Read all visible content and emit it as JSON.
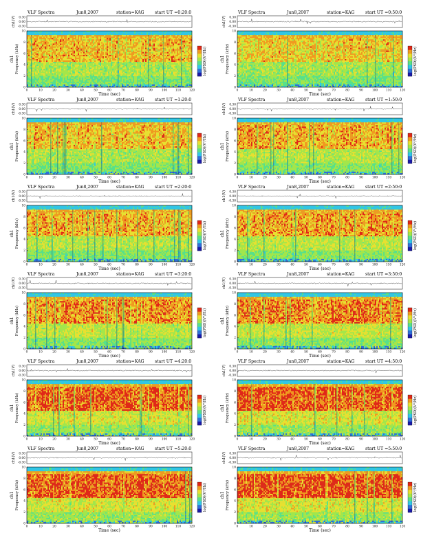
{
  "page": {
    "strip_label": "ch1(V)",
    "freq_label_ch": "ch1",
    "freq_label": "Frequency (kHz)",
    "time_label": "Time (sec)",
    "colorbar_label": "log(PSD)(V²/Hz)"
  },
  "chart_data": [
    {
      "type": "heatmap",
      "title": "VLF Spectra",
      "date": "Jun8,2007",
      "station": "station=KAG",
      "start": "start UT =0:20:0",
      "intensity": 0.55,
      "strip": {
        "ylabel": "ch1(V)",
        "yticks": [
          "0.30",
          "0.00",
          "-0.30"
        ]
      },
      "xlabel": "Time (sec)",
      "ylabel": "Frequency (kHz)",
      "xlim": [
        0,
        120
      ],
      "ylim": [
        0,
        10
      ],
      "xticks": [
        "0",
        "10",
        "20",
        "30",
        "40",
        "50",
        "60",
        "70",
        "80",
        "90",
        "100",
        "110",
        "120"
      ],
      "yticks": [
        "0",
        "2",
        "4",
        "6",
        "8",
        "10"
      ],
      "colorbar": "log(PSD)(V²/Hz)"
    },
    {
      "type": "heatmap",
      "title": "VLF Spectra",
      "date": "Jun8,2007",
      "station": "station=KAG",
      "start": "start UT =0:50:0",
      "intensity": 0.5,
      "strip": {
        "ylabel": "ch1(V)",
        "yticks": [
          "0.30",
          "0.00",
          "-0.30"
        ]
      },
      "xlabel": "Time (sec)",
      "ylabel": "Frequency (kHz)",
      "xlim": [
        0,
        120
      ],
      "ylim": [
        0,
        10
      ],
      "xticks": [
        "0",
        "10",
        "20",
        "30",
        "40",
        "50",
        "60",
        "70",
        "80",
        "90",
        "100",
        "110",
        "120"
      ],
      "yticks": [
        "0",
        "2",
        "4",
        "6",
        "8",
        "10"
      ],
      "colorbar": "log(PSD)(V²/Hz)"
    },
    {
      "type": "heatmap",
      "title": "VLF Spectra",
      "date": "Jun8,2007",
      "station": "station=KAG",
      "start": "start UT =1:20:0",
      "intensity": 0.55,
      "strip": {
        "ylabel": "ch1(V)",
        "yticks": [
          "0.30",
          "0.00",
          "-0.30"
        ]
      },
      "xlabel": "Time (sec)",
      "ylabel": "Frequency (kHz)",
      "xlim": [
        0,
        120
      ],
      "ylim": [
        0,
        10
      ],
      "xticks": [
        "0",
        "10",
        "20",
        "30",
        "40",
        "50",
        "60",
        "70",
        "80",
        "90",
        "100",
        "110",
        "120"
      ],
      "yticks": [
        "0",
        "2",
        "4",
        "6",
        "8",
        "10"
      ],
      "colorbar": "log(PSD)(V²/Hz)"
    },
    {
      "type": "heatmap",
      "title": "VLF Spectra",
      "date": "Jun8,2007",
      "station": "station=KAG",
      "start": "start UT =1:50:0",
      "intensity": 0.6,
      "strip": {
        "ylabel": "ch1(V)",
        "yticks": [
          "0.30",
          "0.00",
          "-0.30"
        ]
      },
      "xlabel": "Time (sec)",
      "ylabel": "Frequency (kHz)",
      "xlim": [
        0,
        120
      ],
      "ylim": [
        0,
        10
      ],
      "xticks": [
        "0",
        "10",
        "20",
        "30",
        "40",
        "50",
        "60",
        "70",
        "80",
        "90",
        "100",
        "110",
        "120"
      ],
      "yticks": [
        "0",
        "2",
        "4",
        "6",
        "8",
        "10"
      ],
      "colorbar": "log(PSD)(V²/Hz)"
    },
    {
      "type": "heatmap",
      "title": "VLF Spectra",
      "date": "Jun8,2007",
      "station": "station=KAG",
      "start": "start UT =2:20:0",
      "intensity": 0.6,
      "strip": {
        "ylabel": "ch1(V)",
        "yticks": [
          "0.30",
          "0.00",
          "-0.30"
        ]
      },
      "xlabel": "Time (sec)",
      "ylabel": "Frequency (kHz)",
      "xlim": [
        0,
        120
      ],
      "ylim": [
        0,
        10
      ],
      "xticks": [
        "0",
        "10",
        "20",
        "30",
        "40",
        "50",
        "60",
        "70",
        "80",
        "90",
        "100",
        "110",
        "120"
      ],
      "yticks": [
        "0",
        "2",
        "4",
        "6",
        "8",
        "10"
      ],
      "colorbar": "log(PSD)(V²/Hz)"
    },
    {
      "type": "heatmap",
      "title": "VLF Spectra",
      "date": "Jun8,2007",
      "station": "station=KAG",
      "start": "start UT =2:50:0",
      "intensity": 0.65,
      "strip": {
        "ylabel": "ch1(V)",
        "yticks": [
          "0.30",
          "0.00",
          "-0.30"
        ]
      },
      "xlabel": "Time (sec)",
      "ylabel": "Frequency (kHz)",
      "xlim": [
        0,
        120
      ],
      "ylim": [
        0,
        10
      ],
      "xticks": [
        "0",
        "10",
        "20",
        "30",
        "40",
        "50",
        "60",
        "70",
        "80",
        "90",
        "100",
        "110",
        "120"
      ],
      "yticks": [
        "0",
        "2",
        "4",
        "6",
        "8",
        "10"
      ],
      "colorbar": "log(PSD)(V²/Hz)"
    },
    {
      "type": "heatmap",
      "title": "VLF Spectra",
      "date": "Jun8,2007",
      "station": "station=KAG",
      "start": "start UT =3:20:0",
      "intensity": 0.68,
      "strip": {
        "ylabel": "ch1(V)",
        "yticks": [
          "0.30",
          "0.00",
          "-0.30"
        ]
      },
      "xlabel": "Time (sec)",
      "ylabel": "Frequency (kHz)",
      "xlim": [
        0,
        120
      ],
      "ylim": [
        0,
        10
      ],
      "xticks": [
        "0",
        "10",
        "20",
        "30",
        "40",
        "50",
        "60",
        "70",
        "80",
        "90",
        "100",
        "110",
        "120"
      ],
      "yticks": [
        "0",
        "2",
        "4",
        "6",
        "8",
        "10"
      ],
      "colorbar": "log(PSD)(V²/Hz)"
    },
    {
      "type": "heatmap",
      "title": "VLF Spectra",
      "date": "Jun8,2007",
      "station": "station=KAG",
      "start": "start UT =3:50:0",
      "intensity": 0.7,
      "strip": {
        "ylabel": "ch1(V)",
        "yticks": [
          "0.30",
          "0.00",
          "-0.30"
        ]
      },
      "xlabel": "Time (sec)",
      "ylabel": "Frequency (kHz)",
      "xlim": [
        0,
        120
      ],
      "ylim": [
        0,
        10
      ],
      "xticks": [
        "0",
        "10",
        "20",
        "30",
        "40",
        "50",
        "60",
        "70",
        "80",
        "90",
        "100",
        "110",
        "120"
      ],
      "yticks": [
        "0",
        "2",
        "4",
        "6",
        "8",
        "10"
      ],
      "colorbar": "log(PSD)(V²/Hz)"
    },
    {
      "type": "heatmap",
      "title": "VLF Spectra",
      "date": "Jun8,2007",
      "station": "station=KAG",
      "start": "start UT =4:20:0",
      "intensity": 0.8,
      "strip": {
        "ylabel": "ch1(V)",
        "yticks": [
          "0.30",
          "0.00",
          "-0.30"
        ]
      },
      "xlabel": "Time (sec)",
      "ylabel": "Frequency (kHz)",
      "xlim": [
        0,
        120
      ],
      "ylim": [
        0,
        10
      ],
      "xticks": [
        "0",
        "10",
        "20",
        "30",
        "40",
        "50",
        "60",
        "70",
        "80",
        "90",
        "100",
        "110",
        "120"
      ],
      "yticks": [
        "0",
        "2",
        "4",
        "6",
        "8",
        "10"
      ],
      "colorbar": "log(PSD)(V²/Hz)"
    },
    {
      "type": "heatmap",
      "title": "VLF Spectra",
      "date": "Jun8,2007",
      "station": "station=KAG",
      "start": "start UT =4:50:0",
      "intensity": 0.82,
      "strip": {
        "ylabel": "ch1(V)",
        "yticks": [
          "0.30",
          "0.00",
          "-0.30"
        ]
      },
      "xlabel": "Time (sec)",
      "ylabel": "Frequency (kHz)",
      "xlim": [
        0,
        120
      ],
      "ylim": [
        0,
        10
      ],
      "xticks": [
        "0",
        "10",
        "20",
        "30",
        "40",
        "50",
        "60",
        "70",
        "80",
        "90",
        "100",
        "110",
        "120"
      ],
      "yticks": [
        "0",
        "2",
        "4",
        "6",
        "8",
        "10"
      ],
      "colorbar": "log(PSD)(V²/Hz)"
    },
    {
      "type": "heatmap",
      "title": "VLF Spectra",
      "date": "Jun8,2007",
      "station": "station=KAG",
      "start": "start UT =5:20:0",
      "intensity": 0.8,
      "strip": {
        "ylabel": "ch1(V)",
        "yticks": [
          "0.30",
          "0.00",
          "-0.30"
        ]
      },
      "xlabel": "Time (sec)",
      "ylabel": "Frequency (kHz)",
      "xlim": [
        0,
        120
      ],
      "ylim": [
        0,
        10
      ],
      "xticks": [
        "0",
        "10",
        "20",
        "30",
        "40",
        "50",
        "60",
        "70",
        "80",
        "90",
        "100",
        "110",
        "120"
      ],
      "yticks": [
        "0",
        "2",
        "4",
        "6",
        "8",
        "10"
      ],
      "colorbar": "log(PSD)(V²/Hz)"
    },
    {
      "type": "heatmap",
      "title": "VLF Spectra",
      "date": "Jun8,2007",
      "station": "station=KAG",
      "start": "start UT =5:50:0",
      "intensity": 0.82,
      "strip": {
        "ylabel": "ch1(V)",
        "yticks": [
          "0.30",
          "0.00",
          "-0.30"
        ]
      },
      "xlabel": "Time (sec)",
      "ylabel": "Frequency (kHz)",
      "xlim": [
        0,
        120
      ],
      "ylim": [
        0,
        10
      ],
      "xticks": [
        "0",
        "10",
        "20",
        "30",
        "40",
        "50",
        "60",
        "70",
        "80",
        "90",
        "100",
        "110",
        "120"
      ],
      "yticks": [
        "0",
        "2",
        "4",
        "6",
        "8",
        "10"
      ],
      "colorbar": "log(PSD)(V²/Hz)"
    }
  ],
  "colors": {
    "colormap": [
      "#1a1aa8",
      "#2f6fd8",
      "#31c6e6",
      "#58e08a",
      "#a4e64a",
      "#e8e030",
      "#f09a20",
      "#e02818"
    ]
  }
}
